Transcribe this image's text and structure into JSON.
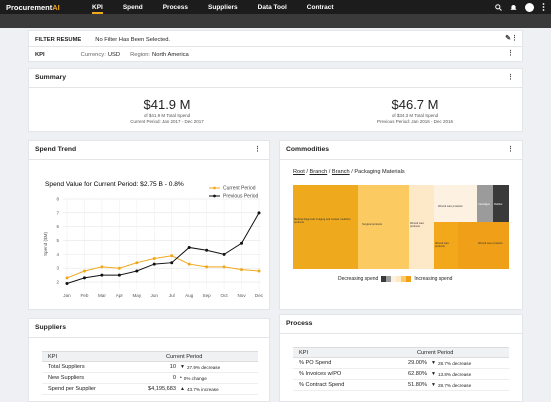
{
  "nav": {
    "logo_main": "Procurement",
    "logo_accent": "AI",
    "items": [
      "KPI",
      "Spend",
      "Process",
      "Suppliers",
      "Data Tool",
      "Contract"
    ]
  },
  "filter": {
    "label": "FILTER RESUME",
    "value": "No Filter Has Been Selected."
  },
  "kpi_bar": {
    "label": "KPI",
    "currency_label": "Currency:",
    "currency": "USD",
    "region_label": "Region:",
    "region": "North America"
  },
  "summary": {
    "title": "Summary",
    "left": {
      "value": "$41.9 M",
      "sub1": "of $41.9 M Total Spend",
      "sub2": "Current Period: Jan 2017 - Dec 2017"
    },
    "right": {
      "value": "$46.7 M",
      "sub1": "of $34.3 M Total Spend",
      "sub2": "Previous Period: Jan 2016 - Dec 2016"
    }
  },
  "spend_trend": {
    "title": "Spend Trend",
    "chart_title": "Spend Value for Current Period: $2.75 B  - 0.8%"
  },
  "chart_data": {
    "type": "line",
    "x": [
      "Jan",
      "Feb",
      "Mar",
      "Apr",
      "May",
      "Jun",
      "Jul",
      "Aug",
      "Sep",
      "Oct",
      "Nov",
      "Dec"
    ],
    "series": [
      {
        "name": "Current Period",
        "color": "#f0a81c",
        "values": [
          2.3,
          2.8,
          3.1,
          3.0,
          3.4,
          3.7,
          3.9,
          3.3,
          3.1,
          3.1,
          2.9,
          2.8
        ]
      },
      {
        "name": "Previous Period",
        "color": "#111111",
        "values": [
          1.9,
          2.3,
          2.5,
          2.5,
          2.8,
          3.3,
          3.4,
          4.5,
          4.3,
          4.0,
          4.8,
          7.0
        ]
      }
    ],
    "ylabel": "Spend ($M)",
    "yticks": [
      2,
      3,
      4,
      5,
      6,
      7,
      8
    ],
    "ylim": [
      1.5,
      8
    ],
    "grid": true,
    "legend": "top-right"
  },
  "commodities": {
    "title": "Commodities",
    "crumbs": [
      "Root",
      "Branch",
      "Branch"
    ],
    "current": "Packaging Materials",
    "cells": [
      "Medical diagnostic imaging and nuclear medicine products",
      "Surgical products",
      "Wound care products",
      "Wound care products",
      "Wound care products",
      "Wound care products",
      "Cartridges",
      "Rubber"
    ],
    "legend_low": "Decreasing spend",
    "legend_high": "Increasing spend"
  },
  "suppliers": {
    "title": "Suppliers",
    "col1": "KPI",
    "col2": "Current Period",
    "rows": [
      {
        "kpi": "Total Suppliers",
        "value": "10",
        "change": "27.9% decrease",
        "dir": "▼"
      },
      {
        "kpi": "New Suppliers",
        "value": "0",
        "change": "0% change",
        "dir": "•"
      },
      {
        "kpi": "Spend per Supplier",
        "value": "$4,195,683",
        "change": "43.7% increase",
        "dir": "▲"
      }
    ]
  },
  "process": {
    "title": "Process",
    "col1": "KPI",
    "col2": "Current Period",
    "rows": [
      {
        "kpi": "% PO Spend",
        "value": "29.00%",
        "change": "28.7% decrease",
        "dir": "▼"
      },
      {
        "kpi": "% Invoices w/PO",
        "value": "62.80%",
        "change": "13.8% decrease",
        "dir": "▼"
      },
      {
        "kpi": "% Contract Spend",
        "value": "51.80%",
        "change": "28.7% decrease",
        "dir": "▼"
      }
    ]
  }
}
